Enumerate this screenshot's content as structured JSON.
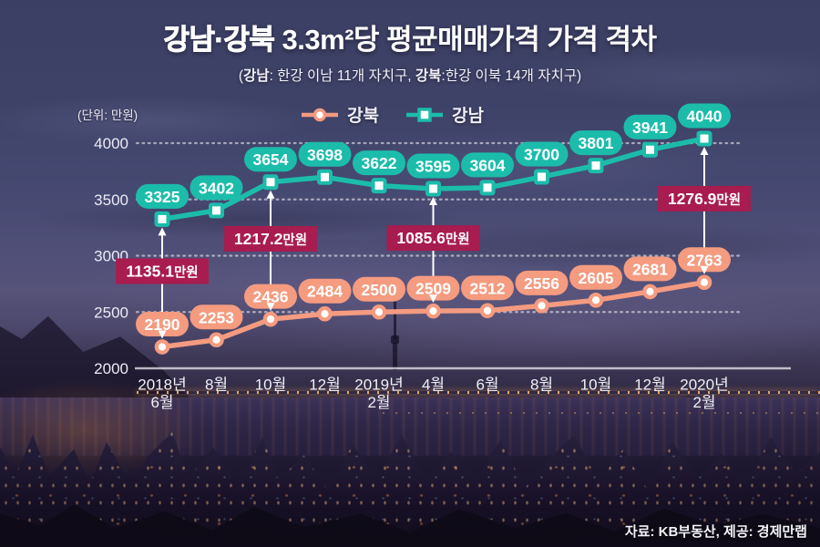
{
  "header": {
    "title_bold": "강남·강북",
    "title_rest": " 3.3m²당 평균매매가격 가격 격차",
    "subtitle": {
      "open": "(",
      "bold1": "강남",
      "text1": ": 한강 이남 11개 자치구, ",
      "bold2": "강북",
      "text2": ":한강 이북 14개 자치구)"
    }
  },
  "axis": {
    "unit_label": "(단위: 만원)"
  },
  "legend": [
    {
      "label": "강북",
      "color": "#f49b80",
      "marker": "circle"
    },
    {
      "label": "강남",
      "color": "#1cbcab",
      "marker": "square"
    }
  ],
  "chart_data": {
    "type": "line",
    "title": "강남·강북 3.3m²당 평균매매가격 가격 격차",
    "unit": "만원",
    "ylim": [
      2000,
      4000
    ],
    "yticks": [
      2000,
      2500,
      3000,
      3500,
      4000
    ],
    "grid": "dotted-horizontal",
    "legend_position": "top",
    "categories": [
      [
        "2018년",
        "6월"
      ],
      [
        "8월"
      ],
      [
        "10월"
      ],
      [
        "12월"
      ],
      [
        "2019년",
        "2월"
      ],
      [
        "4월"
      ],
      [
        "6월"
      ],
      [
        "8월"
      ],
      [
        "10월"
      ],
      [
        "12월"
      ],
      [
        "2020년",
        "2월"
      ]
    ],
    "series": [
      {
        "name": "강남",
        "color": "#1cbcab",
        "marker": "square",
        "values": [
          3325,
          3402,
          3654,
          3698,
          3622,
          3595,
          3604,
          3700,
          3801,
          3941,
          4040
        ]
      },
      {
        "name": "강북",
        "color": "#f49b80",
        "marker": "circle",
        "values": [
          2190,
          2253,
          2436,
          2484,
          2500,
          2509,
          2512,
          2556,
          2605,
          2681,
          2763
        ]
      }
    ],
    "gap_annotations": [
      {
        "index": 0,
        "value": "1135.1",
        "suffix": "만원"
      },
      {
        "index": 2,
        "value": "1217.2",
        "suffix": "만원"
      },
      {
        "index": 5,
        "value": "1085.6",
        "suffix": "만원"
      },
      {
        "index": 10,
        "value": "1276.9",
        "suffix": "만원"
      }
    ],
    "colors": {
      "gap_label_bg": "#a81c4f",
      "badge_text": "#ffffff",
      "grid": "#ffffff"
    }
  },
  "footer": {
    "source": "자료: KB부동산, 제공: 경제만랩"
  }
}
